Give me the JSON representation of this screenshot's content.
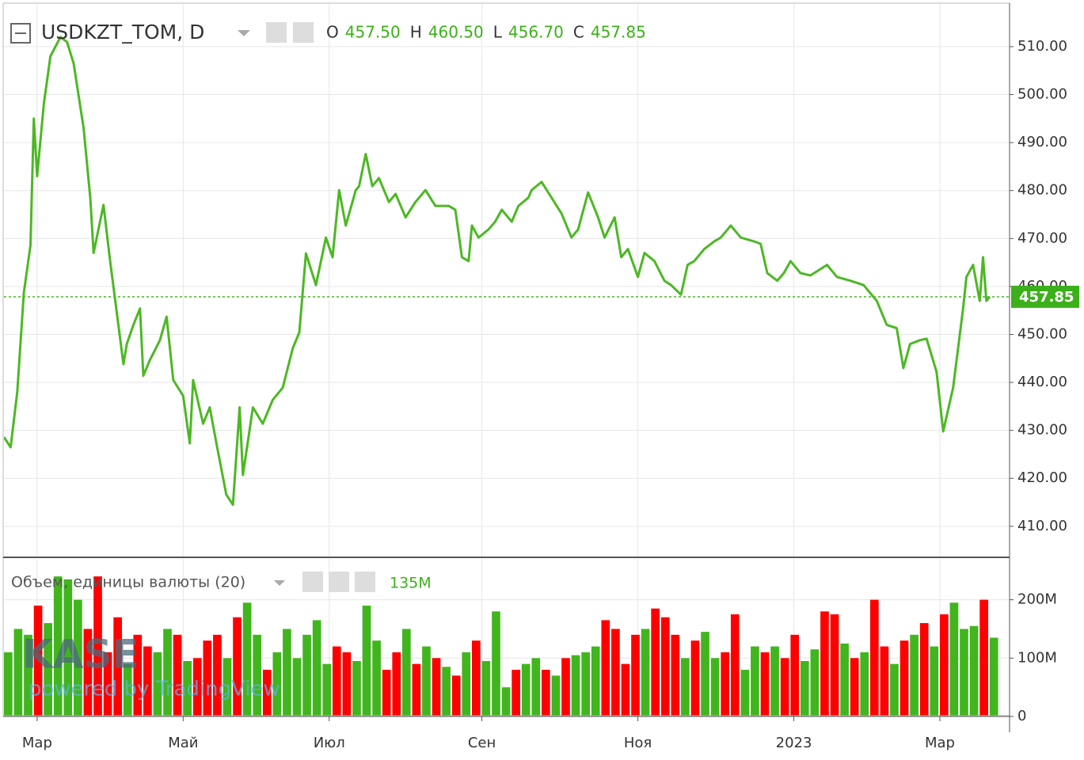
{
  "header": {
    "symbol": "USDKZT_TOM, D",
    "ohlc": [
      {
        "label": "O",
        "value": "457.50"
      },
      {
        "label": "H",
        "value": "460.50"
      },
      {
        "label": "L",
        "value": "456.70"
      },
      {
        "label": "C",
        "value": "457.85"
      }
    ]
  },
  "watermark": {
    "logo": "KASE",
    "tagline": "powered by TradingView"
  },
  "chart_data": [
    {
      "type": "line",
      "color": "#4cb824",
      "x": [
        0,
        2,
        4,
        6,
        8,
        9,
        10,
        12,
        14,
        17,
        19,
        21,
        24,
        26,
        27,
        30,
        32,
        36,
        37,
        39,
        41,
        42,
        44,
        47,
        49,
        51,
        54,
        56,
        57,
        60,
        62,
        64,
        67,
        69,
        71,
        72,
        75,
        78,
        81,
        84,
        87,
        89,
        91,
        94,
        97,
        99,
        101,
        103,
        106,
        107,
        109,
        111,
        113,
        116,
        118,
        121,
        124,
        127,
        130,
        134,
        136,
        138,
        140,
        141,
        143,
        146,
        148,
        150,
        153,
        155,
        158,
        159,
        162,
        165,
        168,
        171,
        173,
        176,
        179,
        181,
        184,
        186,
        188,
        191,
        193,
        196,
        199,
        201,
        204,
        206,
        208,
        211,
        214,
        216,
        219,
        222,
        226,
        228,
        230,
        233,
        235,
        237,
        240,
        243,
        248,
        251,
        255,
        259,
        263,
        266,
        269,
        271,
        273,
        276,
        278,
        281,
        283,
        286,
        289,
        290,
        292,
        294,
        295,
        296,
        297
      ],
      "values": [
        428.6,
        426.5,
        438,
        458.7,
        468.6,
        495,
        483,
        498,
        508,
        512,
        511,
        506.5,
        493,
        478.5,
        467,
        477,
        465.3,
        443.8,
        448,
        452,
        455.4,
        441.4,
        444.7,
        448.8,
        453.7,
        440.5,
        437.2,
        427.3,
        440.5,
        431.4,
        434.8,
        427.3,
        416.6,
        414.5,
        434.8,
        420.7,
        434.8,
        431.4,
        436.4,
        438.9,
        447.1,
        450.4,
        466.9,
        460.3,
        470.2,
        466.1,
        480.1,
        472.7,
        480.1,
        480.9,
        487.6,
        480.9,
        482.6,
        477.6,
        479.3,
        474.4,
        477.6,
        480.1,
        476.8,
        476.8,
        476,
        466.1,
        465.3,
        472.7,
        470.2,
        471.9,
        473.5,
        476,
        473.5,
        476.8,
        478.5,
        480.1,
        481.8,
        478.5,
        475.2,
        470.2,
        471.9,
        479.6,
        474.4,
        470.2,
        474.4,
        466.1,
        467.8,
        462,
        467,
        465.3,
        461.2,
        460.3,
        458.3,
        464.5,
        465.3,
        467.8,
        469.4,
        470.2,
        472.7,
        470.2,
        469.4,
        468.9,
        462.8,
        461.2,
        462.8,
        465.3,
        462.8,
        462.3,
        464.5,
        462,
        461.2,
        460.3,
        457,
        452,
        451.3,
        443,
        448,
        448.8,
        449.1,
        442.2,
        429.8,
        438.9,
        455.4,
        462,
        464.5,
        457,
        466.1,
        457,
        457.85
      ],
      "xlim": [
        0,
        303
      ],
      "ylim": [
        403.7,
        518.9
      ],
      "yticks": [
        {
          "value": 410,
          "label": "410.00"
        },
        {
          "value": 420,
          "label": "420.00"
        },
        {
          "value": 430,
          "label": "430.00"
        },
        {
          "value": 440,
          "label": "440.00"
        },
        {
          "value": 450,
          "label": "450.00"
        },
        {
          "value": 460,
          "label": "460.00"
        },
        {
          "value": 470,
          "label": "470.00"
        },
        {
          "value": 480,
          "label": "480.00"
        },
        {
          "value": 490,
          "label": "490.00"
        },
        {
          "value": 500,
          "label": "500.00"
        },
        {
          "value": 510,
          "label": "510.00"
        }
      ],
      "last_price": {
        "value": 457.85,
        "label": "457.85"
      },
      "grid": true
    },
    {
      "type": "bar",
      "title": "Объем, единицы валюты (20)",
      "volume_label": "135M",
      "x": [
        0,
        3,
        6,
        9,
        12,
        15,
        18,
        21,
        24,
        27,
        30,
        33,
        36,
        39,
        42,
        45,
        48,
        51,
        54,
        57,
        60,
        63,
        66,
        69,
        72,
        75,
        78,
        81,
        84,
        87,
        90,
        93,
        96,
        99,
        102,
        105,
        108,
        111,
        114,
        117,
        120,
        123,
        126,
        129,
        132,
        135,
        138,
        141,
        144,
        147,
        150,
        153,
        156,
        159,
        162,
        165,
        168,
        171,
        174,
        177,
        180,
        183,
        186,
        189,
        192,
        195,
        198,
        201,
        204,
        207,
        210,
        213,
        216,
        219,
        222,
        225,
        228,
        231,
        234,
        237,
        240,
        243,
        246,
        249,
        252,
        255,
        258,
        261,
        264,
        267,
        270,
        273,
        276,
        279,
        282,
        285,
        288,
        291,
        294,
        297
      ],
      "values": [
        110000000,
        150000000,
        140000000,
        190000000,
        160000000,
        240000000,
        235000000,
        200000000,
        150000000,
        240000000,
        110000000,
        170000000,
        90000000,
        140000000,
        120000000,
        110000000,
        150000000,
        140000000,
        95000000,
        100000000,
        130000000,
        140000000,
        100000000,
        170000000,
        195000000,
        140000000,
        80000000,
        110000000,
        150000000,
        100000000,
        140000000,
        165000000,
        90000000,
        120000000,
        110000000,
        95000000,
        190000000,
        130000000,
        80000000,
        110000000,
        150000000,
        90000000,
        120000000,
        100000000,
        85000000,
        70000000,
        110000000,
        130000000,
        95000000,
        180000000,
        50000000,
        80000000,
        90000000,
        100000000,
        80000000,
        70000000,
        100000000,
        105000000,
        110000000,
        120000000,
        165000000,
        150000000,
        90000000,
        140000000,
        150000000,
        185000000,
        170000000,
        140000000,
        100000000,
        130000000,
        145000000,
        100000000,
        110000000,
        175000000,
        80000000,
        120000000,
        110000000,
        120000000,
        100000000,
        140000000,
        95000000,
        115000000,
        180000000,
        175000000,
        125000000,
        100000000,
        110000000,
        200000000,
        120000000,
        90000000,
        130000000,
        140000000,
        160000000,
        120000000,
        175000000,
        195000000,
        150000000,
        155000000,
        200000000,
        135000000
      ],
      "colors": [
        "#41b51d",
        "#41b51d",
        "#41b51d",
        "#ff0000",
        "#41b51d",
        "#41b51d",
        "#41b51d",
        "#41b51d",
        "#ff0000",
        "#ff0000",
        "#ff0000",
        "#ff0000",
        "#41b51d",
        "#ff0000",
        "#ff0000",
        "#41b51d",
        "#41b51d",
        "#ff0000",
        "#41b51d",
        "#ff0000",
        "#ff0000",
        "#ff0000",
        "#41b51d",
        "#ff0000",
        "#41b51d",
        "#41b51d",
        "#ff0000",
        "#41b51d",
        "#41b51d",
        "#41b51d",
        "#41b51d",
        "#41b51d",
        "#41b51d",
        "#ff0000",
        "#ff0000",
        "#41b51d",
        "#41b51d",
        "#41b51d",
        "#ff0000",
        "#ff0000",
        "#41b51d",
        "#ff0000",
        "#41b51d",
        "#ff0000",
        "#41b51d",
        "#ff0000",
        "#41b51d",
        "#ff0000",
        "#41b51d",
        "#41b51d",
        "#41b51d",
        "#ff0000",
        "#41b51d",
        "#41b51d",
        "#ff0000",
        "#41b51d",
        "#ff0000",
        "#41b51d",
        "#41b51d",
        "#41b51d",
        "#ff0000",
        "#ff0000",
        "#ff0000",
        "#ff0000",
        "#41b51d",
        "#ff0000",
        "#ff0000",
        "#ff0000",
        "#41b51d",
        "#ff0000",
        "#41b51d",
        "#41b51d",
        "#ff0000",
        "#ff0000",
        "#41b51d",
        "#41b51d",
        "#ff0000",
        "#41b51d",
        "#ff0000",
        "#ff0000",
        "#41b51d",
        "#41b51d",
        "#ff0000",
        "#ff0000",
        "#41b51d",
        "#ff0000",
        "#41b51d",
        "#ff0000",
        "#ff0000",
        "#41b51d",
        "#ff0000",
        "#41b51d",
        "#ff0000",
        "#41b51d",
        "#ff0000",
        "#41b51d",
        "#41b51d",
        "#41b51d",
        "#ff0000",
        "#41b51d"
      ],
      "xlim": [
        0,
        303
      ],
      "ylim": [
        0,
        270000000
      ],
      "yticks": [
        0,
        {
          "value": 100000000,
          "label": "100M"
        },
        {
          "value": 200000000,
          "label": "200M"
        }
      ],
      "xticks": [
        {
          "value": 10,
          "label": "Мар"
        },
        {
          "value": 54,
          "label": "Май"
        },
        {
          "value": 98,
          "label": "Июл"
        },
        {
          "value": 144,
          "label": "Сен"
        },
        {
          "value": 191,
          "label": "Ноя"
        },
        {
          "value": 238,
          "label": "2023"
        },
        {
          "value": 282,
          "label": "Мар"
        }
      ],
      "grid": true
    }
  ]
}
